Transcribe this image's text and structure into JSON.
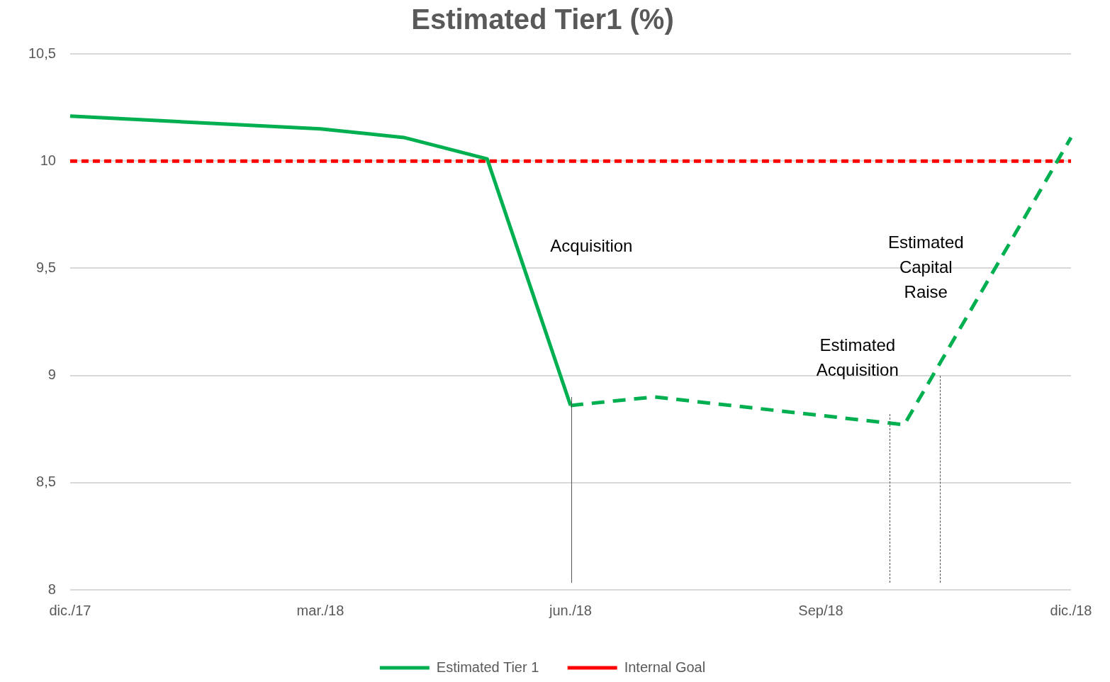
{
  "chart_data": {
    "type": "line",
    "title": "Estimated Tier1 (%)",
    "categories": [
      "dic./17",
      null,
      null,
      "mar./18",
      null,
      null,
      "jun./18",
      null,
      null,
      "Sep/18",
      null,
      null,
      "dic./18"
    ],
    "series": [
      {
        "name": "Estimated Tier 1",
        "color": "#00b050",
        "line_style": "solid",
        "values": [
          10.21,
          null,
          null,
          10.15,
          10.11,
          10.01,
          8.86,
          null,
          null,
          null,
          null,
          null,
          null
        ]
      },
      {
        "color": "#00b050",
        "line_style": "dashed",
        "values": [
          null,
          null,
          null,
          null,
          null,
          null,
          8.86,
          8.9,
          null,
          null,
          8.77,
          null,
          10.11
        ]
      },
      {
        "name": "Internal Goal",
        "color": "#ff0000",
        "line_style": "dotted",
        "values": [
          10,
          10,
          10,
          10,
          10,
          10,
          10,
          10,
          10,
          10,
          10,
          10,
          10
        ]
      }
    ],
    "ylim": [
      8,
      10.5
    ],
    "yticks": [
      8,
      {
        "value": 8.5,
        "label": "8,5"
      },
      9,
      {
        "value": 9.5,
        "label": "9,5"
      },
      10,
      {
        "value": 10.5,
        "label": "10,5"
      }
    ],
    "grid": "y",
    "legend": "bottom",
    "marker": "none",
    "annotations": [
      "Acquisition",
      "Estimated Acquisition",
      "Estimated Capital Raise"
    ]
  }
}
